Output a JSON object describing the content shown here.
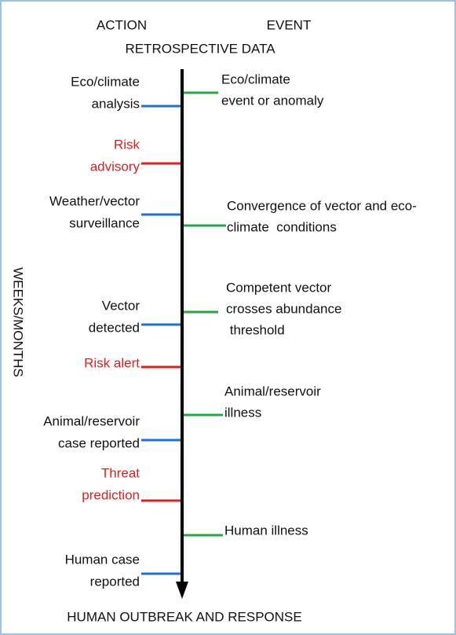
{
  "header": {
    "left": "ACTION",
    "right": "EVENT",
    "subtitle": "RETROSPECTIVE DATA"
  },
  "axis_label": "WEEKS/MONTHS",
  "footer": "HUMAN OUTBREAK AND RESPONSE",
  "actions": [
    {
      "lines": [
        "Eco/climate",
        "analysis"
      ],
      "color": "#1f6fd6"
    },
    {
      "lines": [
        "Risk",
        "advisory"
      ],
      "color": "#e0201f"
    },
    {
      "lines": [
        "Weather/vector",
        "surveillance"
      ],
      "color": "#1f6fd6"
    },
    {
      "lines": [
        "Vector",
        "detected"
      ],
      "color": "#1f6fd6"
    },
    {
      "lines": [
        "Risk alert"
      ],
      "color": "#e0201f"
    },
    {
      "lines": [
        "Animal/reservoir",
        "case reported"
      ],
      "color": "#1f6fd6"
    },
    {
      "lines": [
        "Threat",
        "prediction"
      ],
      "color": "#e0201f"
    },
    {
      "lines": [
        "Human case",
        "reported"
      ],
      "color": "#1f6fd6"
    }
  ],
  "events": [
    {
      "lines": [
        "Eco/climate",
        "event or anomaly"
      ],
      "color": "#22a845"
    },
    {
      "lines": [
        "Convergence of vector and eco-",
        "climate  conditions"
      ],
      "color": "#22a845"
    },
    {
      "lines": [
        "Competent vector",
        "crosses abundance",
        " threshold"
      ],
      "color": "#22a845"
    },
    {
      "lines": [
        "Animal/reservoir",
        "illness"
      ],
      "color": "#22a845"
    },
    {
      "lines": [
        "Human illness"
      ],
      "color": "#22a845"
    }
  ]
}
